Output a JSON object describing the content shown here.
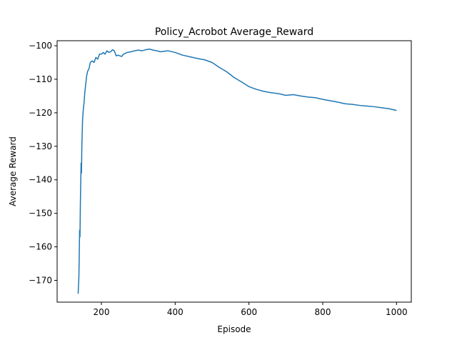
{
  "chart_data": {
    "type": "line",
    "title": "Policy_Acrobot Average_Reward",
    "xlabel": "Episode",
    "ylabel": "Average Reward",
    "xlim": [
      80,
      1040
    ],
    "ylim": [
      -176.5,
      -98.5
    ],
    "xticks": [
      200,
      400,
      600,
      800,
      1000
    ],
    "yticks": [
      -100,
      -110,
      -120,
      -130,
      -140,
      -150,
      -160,
      -170
    ],
    "xtick_labels": [
      "200",
      "400",
      "600",
      "800",
      "1000"
    ],
    "ytick_labels": [
      "−100",
      "−110",
      "−120",
      "−130",
      "−140",
      "−150",
      "−160",
      "−170"
    ],
    "grid": false,
    "series": [
      {
        "color": "#1f77b4",
        "x": [
          137,
          139,
          140,
          141,
          142,
          143,
          145,
          146,
          147,
          148,
          149,
          151,
          153,
          155,
          157,
          160,
          163,
          166,
          170,
          175,
          180,
          185,
          190,
          195,
          200,
          205,
          210,
          215,
          220,
          225,
          230,
          235,
          240,
          245,
          250,
          255,
          260,
          270,
          280,
          290,
          300,
          310,
          320,
          330,
          340,
          350,
          360,
          380,
          400,
          420,
          440,
          460,
          480,
          500,
          520,
          540,
          560,
          580,
          600,
          620,
          640,
          660,
          680,
          700,
          720,
          740,
          760,
          780,
          800,
          820,
          840,
          860,
          880,
          900,
          920,
          940,
          960,
          980,
          1000
        ],
        "y": [
          -174,
          -169,
          -162,
          -155,
          -157,
          -147,
          -135,
          -138,
          -130,
          -126,
          -122,
          -119,
          -117,
          -114,
          -112,
          -109,
          -107.5,
          -107,
          -105,
          -104.5,
          -105,
          -103.5,
          -104,
          -102.5,
          -102.5,
          -102,
          -102.5,
          -101.5,
          -102,
          -101.8,
          -101.2,
          -101.5,
          -103,
          -102.8,
          -103,
          -103.2,
          -102.5,
          -102,
          -101.8,
          -101.5,
          -101.3,
          -101.5,
          -101.2,
          -101,
          -101.3,
          -101.5,
          -101.8,
          -101.5,
          -102,
          -102.8,
          -103.3,
          -103.8,
          -104.2,
          -105,
          -106.5,
          -107.8,
          -109.5,
          -110.8,
          -112.2,
          -113,
          -113.6,
          -114,
          -114.3,
          -114.8,
          -114.6,
          -115,
          -115.3,
          -115.5,
          -116,
          -116.4,
          -116.8,
          -117.3,
          -117.5,
          -117.8,
          -118,
          -118.2,
          -118.5,
          -118.8,
          -119.3
        ]
      }
    ]
  }
}
